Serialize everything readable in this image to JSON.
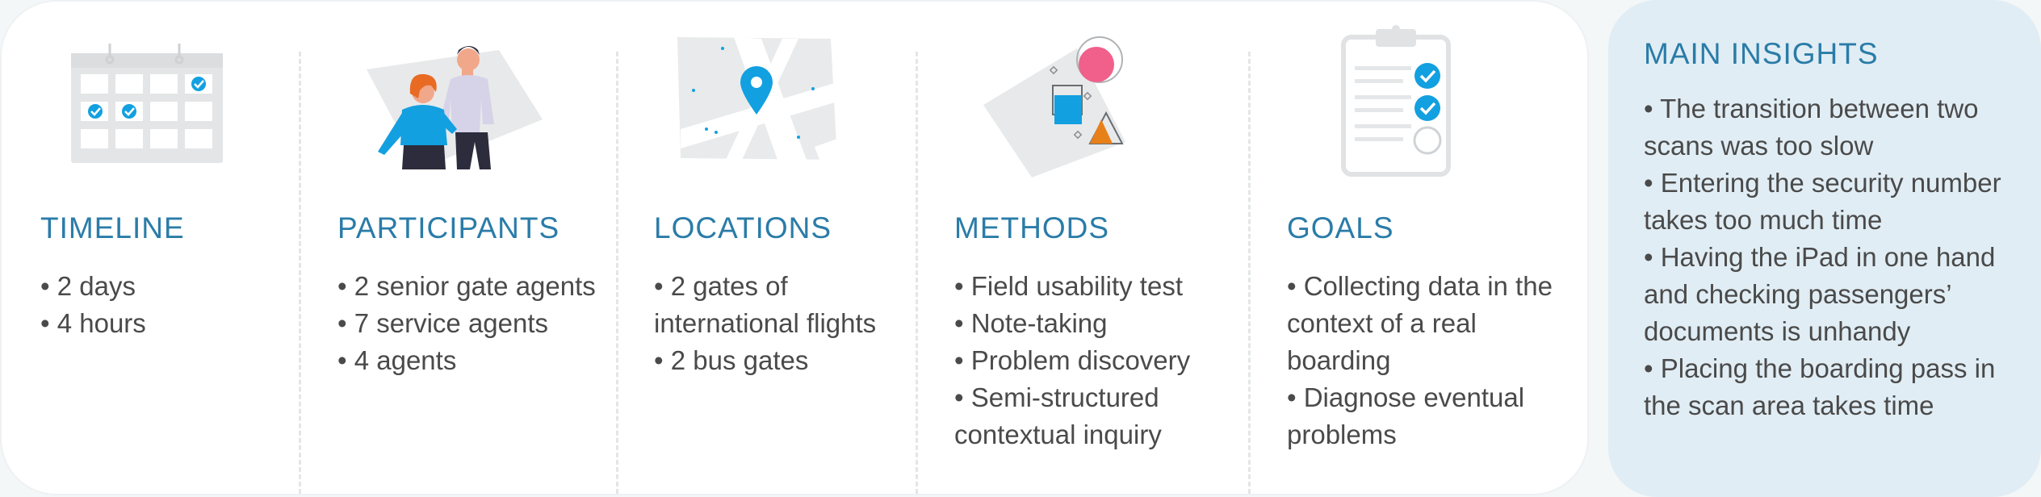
{
  "colors": {
    "accent": "#2a7ca8",
    "icon_blue": "#12a0e0",
    "pink": "#f0608a",
    "orange": "#e8801a",
    "text": "#4a4a4a",
    "insights_bg": "#e1edf4"
  },
  "sections": [
    {
      "title": "TIMELINE",
      "icon": "calendar-icon",
      "items": [
        "• 2 days",
        "• 4 hours"
      ]
    },
    {
      "title": "PARTICIPANTS",
      "icon": "people-illustration",
      "items": [
        "• 2 senior gate agents",
        "• 7 service agents",
        "• 4 agents"
      ]
    },
    {
      "title": "LOCATIONS",
      "icon": "map-pin-icon",
      "items": [
        "• 2 gates of international flights",
        "• 2 bus gates"
      ]
    },
    {
      "title": "METHODS",
      "icon": "shapes-illustration",
      "items": [
        "• Field usability test",
        "• Note-taking",
        "• Problem discovery",
        "• Semi-structured contextual inquiry"
      ]
    },
    {
      "title": "GOALS",
      "icon": "clipboard-checklist-icon",
      "items": [
        "• Collecting data in the context of a real boarding",
        "• Diagnose eventual problems"
      ]
    }
  ],
  "insights": {
    "title": "MAIN INSIGHTS",
    "items": [
      "• The transition between two scans was too slow",
      "• Entering the security number takes too much time",
      "• Having the iPad in one hand and checking passengers’ documents is unhandy",
      "• Placing the boarding pass in the scan area takes time"
    ]
  }
}
